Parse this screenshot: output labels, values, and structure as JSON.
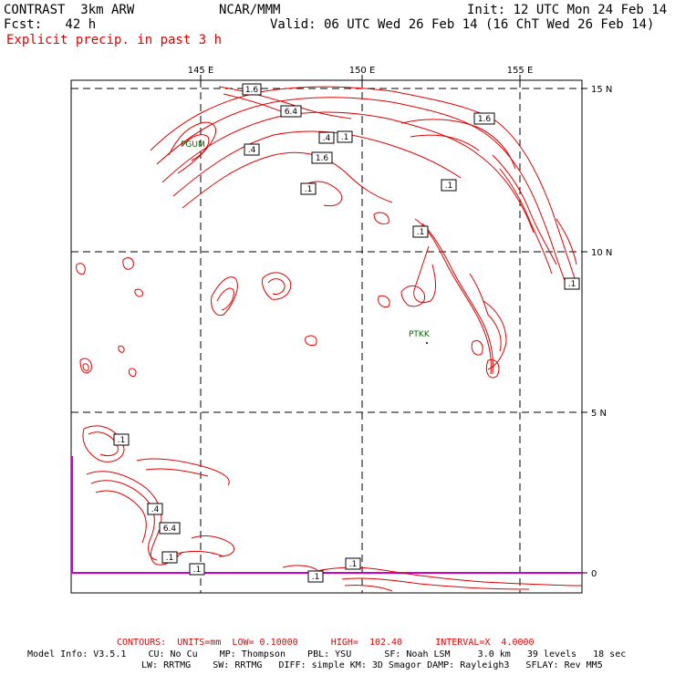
{
  "header": {
    "model_name": "CONTRAST  3km ARW",
    "org": "NCAR/MMM",
    "init": "Init: 12 UTC Mon 24 Feb 14",
    "fcst": "Fcst:   42 h",
    "valid": "Valid: 06 UTC Wed 26 Feb 14 (16 ChT Wed 26 Feb 14)",
    "field": "Explicit precip. in past 3 h"
  },
  "axes": {
    "lon_labels": [
      "145 E",
      "150 E",
      "155 E"
    ],
    "lat_labels": [
      "15 N",
      "10 N",
      "5 N",
      "0"
    ]
  },
  "contour_labels": [
    "1.6",
    "6.4",
    ".4",
    ".1",
    ".4",
    "1.6",
    "1.6",
    ".1",
    ".1",
    ".1",
    ".1",
    ".1",
    ".4",
    "6.4",
    ".1",
    ".1",
    ".1",
    ".1"
  ],
  "stations": [
    "PGUM",
    "PTKK"
  ],
  "footer": {
    "contours_line": "CONTOURS:  UNITS=mm  LOW= 0.10000      HIGH=  102.40      INTERVAL=X  4.0000",
    "model_info_1": "Model Info: V3.5.1    CU: No Cu    MP: Thompson    PBL: YSU      SF: Noah LSM     3.0 km   39 levels   18 sec",
    "model_info_2": "LW: RRTMG    SW: RRTMG   DIFF: simple KM: 3D Smagor DAMP: Rayleigh3   SFLAY: Rev MM5"
  },
  "colors": {
    "contour": "#e00000",
    "grid": "#000000",
    "station": "#006400",
    "equator_line": "#cc00cc"
  }
}
